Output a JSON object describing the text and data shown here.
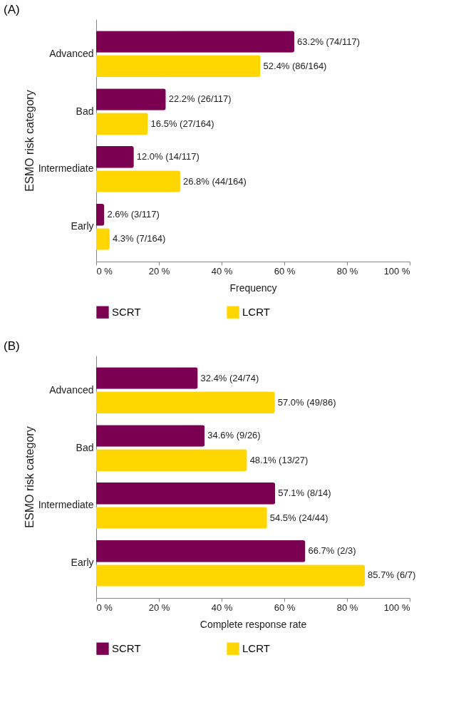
{
  "chart_data": [
    {
      "type": "bar",
      "orientation": "horizontal",
      "title": "(A)",
      "ylabel": "ESMO risk category",
      "xlabel": "Frequency",
      "categories": [
        "Advanced",
        "Bad",
        "Intermediate",
        "Early"
      ],
      "xlim": [
        0,
        100
      ],
      "xticks": [
        {
          "value": 0,
          "label": "0 %"
        },
        {
          "value": 20,
          "label": "20 %"
        },
        {
          "value": 40,
          "label": "40 %"
        },
        {
          "value": 60,
          "label": "60 %"
        },
        {
          "value": 80,
          "label": "80 %"
        },
        {
          "value": 100,
          "label": "100 %"
        }
      ],
      "legend": "bottom",
      "grid": false,
      "series": [
        {
          "name": "SCRT",
          "color": "#7b0051",
          "values": [
            63.2,
            22.2,
            12.0,
            2.6
          ],
          "value_labels": [
            "63.2% (74/117)",
            "22.2% (26/117)",
            "12.0% (14/117)",
            "2.6% (3/117)"
          ]
        },
        {
          "name": "LCRT",
          "color": "#ffd600",
          "values": [
            52.4,
            16.5,
            26.8,
            4.3
          ],
          "value_labels": [
            "52.4% (86/164)",
            "16.5% (27/164)",
            "26.8% (44/164)",
            "4.3% (7/164)"
          ]
        }
      ]
    },
    {
      "type": "bar",
      "orientation": "horizontal",
      "title": "(B)",
      "ylabel": "ESMO risk category",
      "xlabel": "Complete response rate",
      "categories": [
        "Advanced",
        "Bad",
        "Intermediate",
        "Early"
      ],
      "xlim": [
        0,
        100
      ],
      "xticks": [
        {
          "value": 0,
          "label": "0 %"
        },
        {
          "value": 20,
          "label": "20 %"
        },
        {
          "value": 40,
          "label": "40 %"
        },
        {
          "value": 60,
          "label": "60 %"
        },
        {
          "value": 80,
          "label": "80 %"
        },
        {
          "value": 100,
          "label": "100 %"
        }
      ],
      "legend": "bottom",
      "grid": false,
      "series": [
        {
          "name": "SCRT",
          "color": "#7b0051",
          "values": [
            32.4,
            34.6,
            57.1,
            66.7
          ],
          "value_labels": [
            "32.4% (24/74)",
            "34.6% (9/26)",
            "57.1% (8/14)",
            "66.7% (2/3)"
          ]
        },
        {
          "name": "LCRT",
          "color": "#ffd600",
          "values": [
            57.0,
            48.1,
            54.5,
            85.7
          ],
          "value_labels": [
            "57.0% (49/86)",
            "48.1% (13/27)",
            "54.5% (24/44)",
            "85.7% (6/7)"
          ]
        }
      ]
    }
  ]
}
